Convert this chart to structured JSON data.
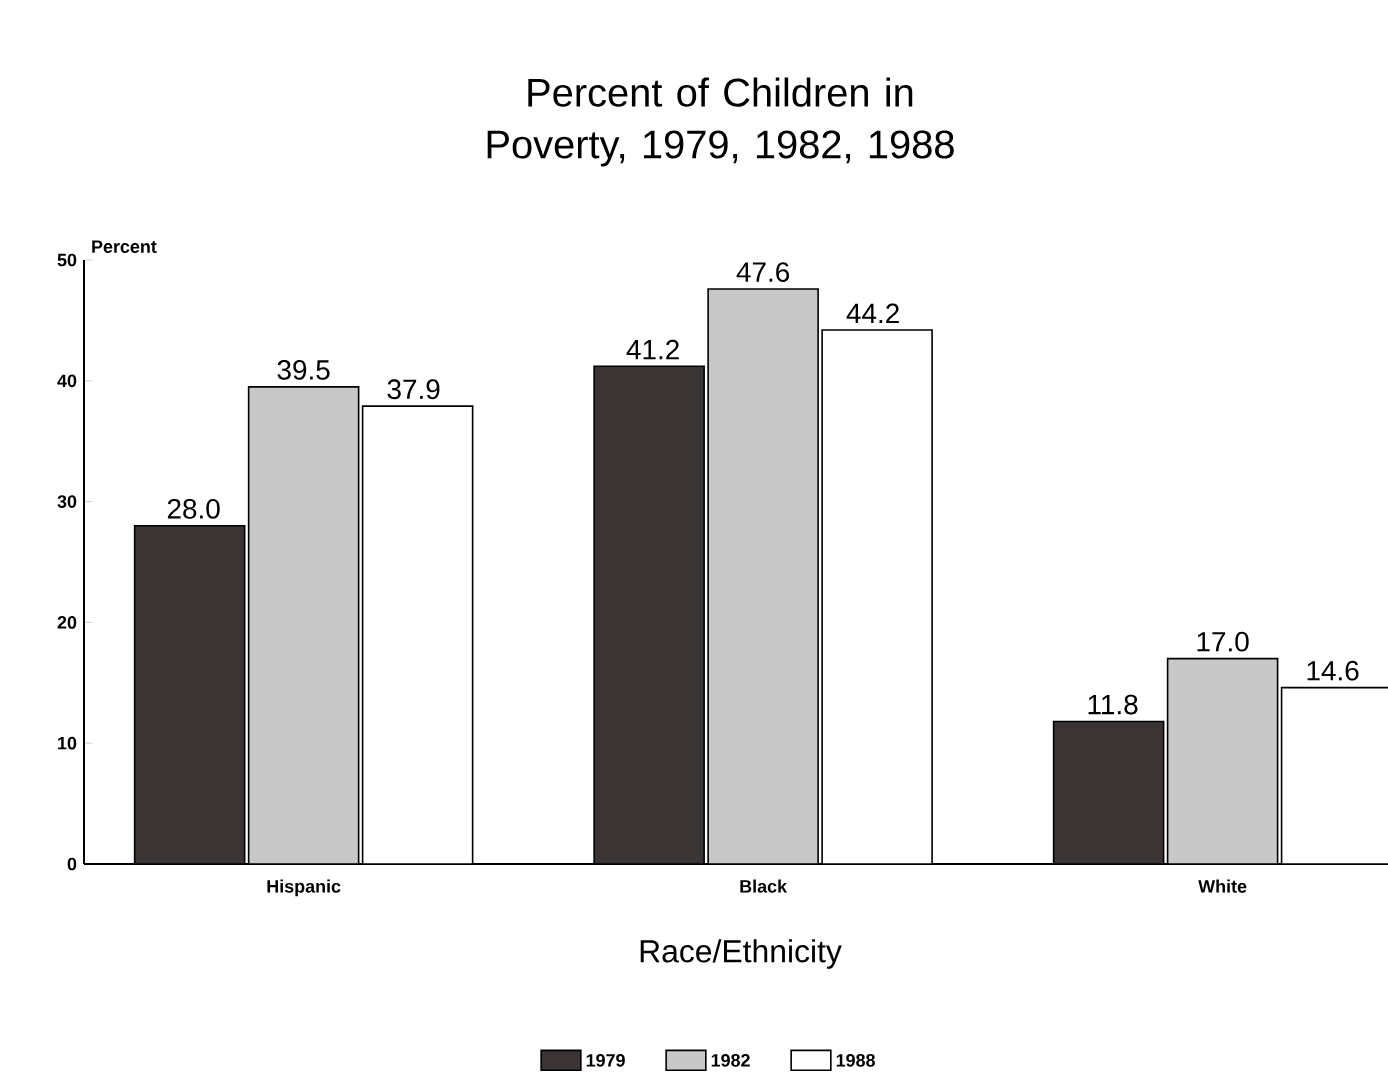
{
  "chart_data": {
    "type": "bar",
    "title": "Percent of Children in Poverty, 1979, 1982, 1988",
    "xlabel": "Race/Ethnicity",
    "ylabel": "Percent",
    "categories": [
      "Hispanic",
      "Black",
      "White"
    ],
    "series": [
      {
        "name": "1979",
        "color": "#3b3434",
        "values": [
          28.0,
          41.2,
          11.8
        ],
        "value_labels": [
          "28.0",
          "41.2",
          "11.8"
        ]
      },
      {
        "name": "1982",
        "color": "#c8c8c8",
        "values": [
          39.5,
          47.6,
          17.0
        ],
        "value_labels": [
          "39.5",
          "47.6",
          "17.0"
        ]
      },
      {
        "name": "1988",
        "color": "#ffffff",
        "values": [
          37.9,
          44.2,
          14.6
        ],
        "value_labels": [
          "37.9",
          "44.2",
          "14.6"
        ]
      }
    ],
    "ylim": [
      0,
      50
    ],
    "yticks": [
      0,
      10,
      20,
      30,
      40,
      50
    ],
    "legend": "bottom",
    "grid": false
  }
}
